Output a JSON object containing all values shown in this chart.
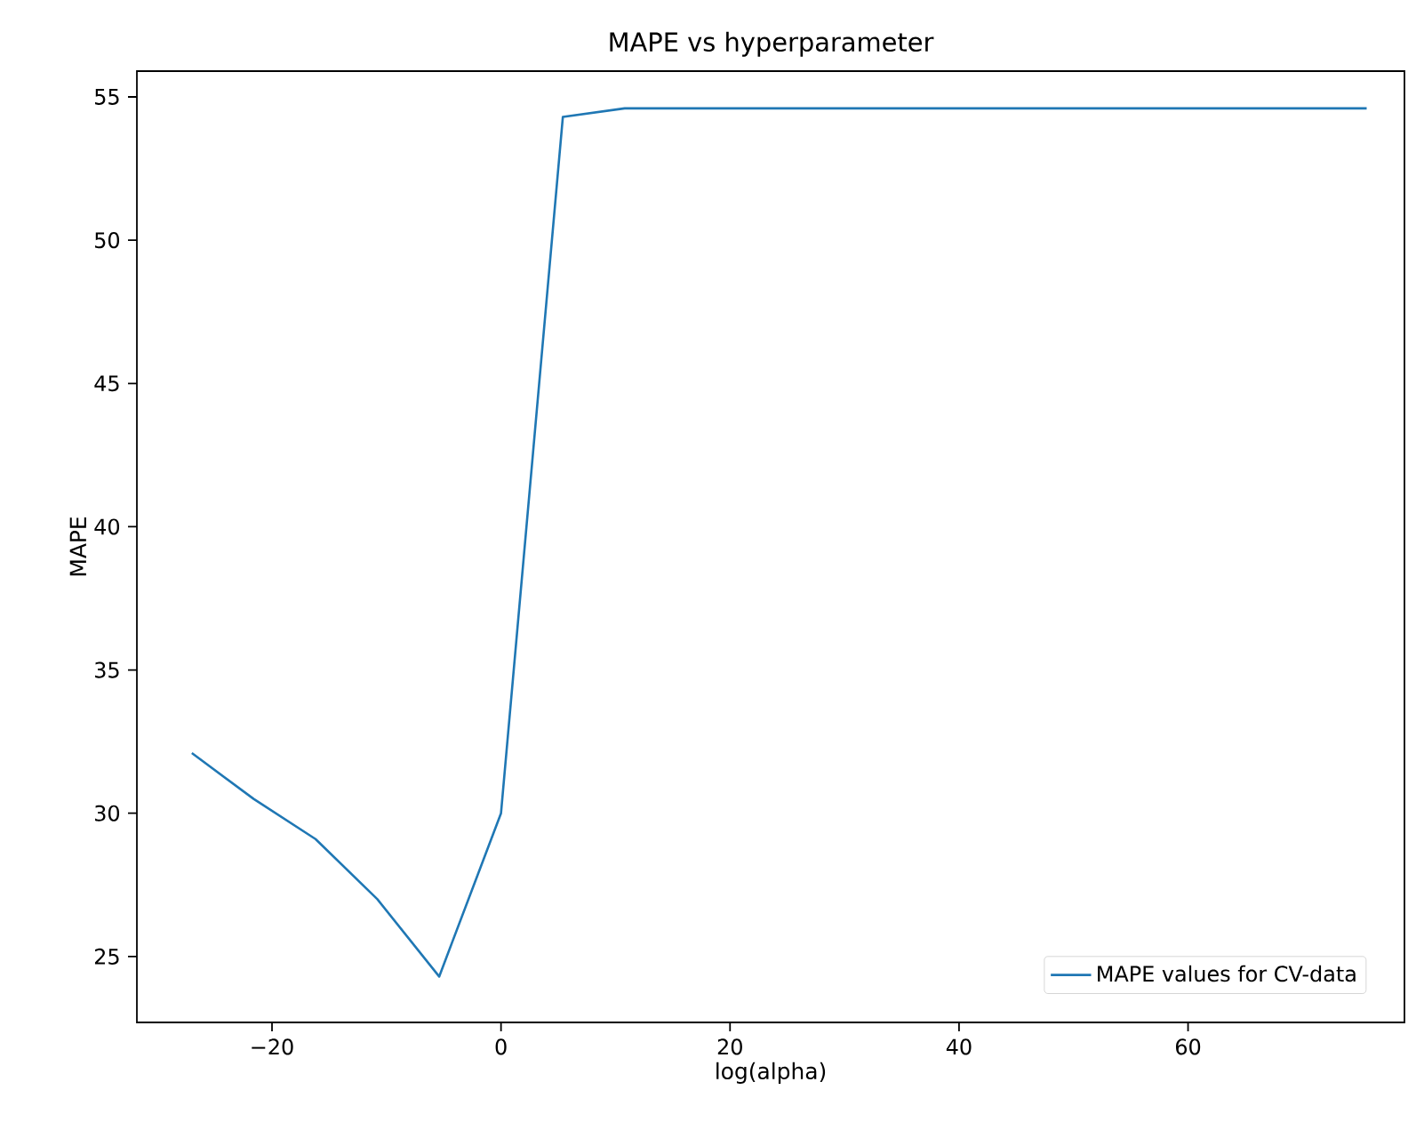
{
  "chart_data": {
    "type": "line",
    "title": "MAPE vs hyperparameter",
    "xlabel": "log(alpha)",
    "ylabel": "MAPE",
    "x": [
      -27,
      -21.6,
      -16.2,
      -10.8,
      -5.4,
      0,
      5.4,
      10.8,
      16.2,
      21.6,
      27,
      32.4,
      37.8,
      43.2,
      48.6,
      54,
      59.4,
      64.8,
      70.2,
      75.6
    ],
    "series": [
      {
        "name": "MAPE values for CV-data",
        "color": "#1f77b4",
        "values": [
          32.1,
          30.5,
          29.1,
          27.0,
          24.3,
          30.0,
          54.3,
          54.6,
          54.6,
          54.6,
          54.6,
          54.6,
          54.6,
          54.6,
          54.6,
          54.6,
          54.6,
          54.6,
          54.6,
          54.6
        ]
      }
    ],
    "xlim": [
      -31.8,
      78.9
    ],
    "ylim": [
      22.7,
      55.9
    ],
    "xticks": [
      {
        "value": -20,
        "label": "−20"
      },
      0,
      20,
      40,
      60
    ],
    "yticks": [
      25,
      30,
      35,
      40,
      45,
      50,
      55
    ],
    "legend": "bottom right",
    "grid": false,
    "marker": "none",
    "line_style": "solid"
  }
}
